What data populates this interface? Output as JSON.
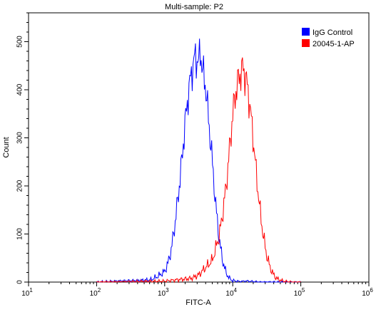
{
  "chart_data": {
    "type": "line",
    "title": "Multi-sample: P2",
    "xlabel": "FITC-A",
    "ylabel": "Count",
    "x_scale": "log",
    "xlim": [
      10,
      1000000
    ],
    "ylim": [
      0,
      560
    ],
    "x_ticks": [
      {
        "value": 10,
        "base": "10",
        "exp": "1"
      },
      {
        "value": 100,
        "base": "10",
        "exp": "2"
      },
      {
        "value": 1000,
        "base": "10",
        "exp": "3"
      },
      {
        "value": 10000,
        "base": "10",
        "exp": "4"
      },
      {
        "value": 100000,
        "base": "10",
        "exp": "5"
      },
      {
        "value": 1000000,
        "base": "10",
        "exp": "6"
      }
    ],
    "y_ticks": [
      0,
      100,
      200,
      300,
      400,
      500
    ],
    "grid": false,
    "legend_position": "top-right",
    "series": [
      {
        "name": "IgG Control",
        "color": "#0000ff",
        "x": [
          100,
          200,
          398,
          631,
          794,
          1000,
          1122,
          1259,
          1413,
          1585,
          1778,
          1995,
          2239,
          2512,
          2818,
          3162,
          3350,
          3548,
          3981,
          4467,
          5012,
          5623,
          6310,
          7079,
          7943,
          8913,
          10000,
          12589,
          15849,
          25119,
          100000
        ],
        "values": [
          0,
          2,
          3,
          5,
          12,
          22,
          40,
          70,
          120,
          180,
          250,
          330,
          395,
          440,
          470,
          455,
          485,
          445,
          410,
          330,
          250,
          160,
          90,
          45,
          20,
          8,
          3,
          1,
          2,
          0,
          0
        ]
      },
      {
        "name": "20045-1-AP",
        "color": "#ff0000",
        "x": [
          100,
          1000,
          2512,
          3162,
          3981,
          5012,
          5623,
          6310,
          7079,
          7943,
          8913,
          10000,
          11220,
          12589,
          14125,
          15849,
          17783,
          19953,
          22387,
          25119,
          28184,
          31623,
          35481,
          39811,
          44668,
          50119,
          56234,
          63096,
          79433,
          100000
        ],
        "values": [
          0,
          2,
          8,
          15,
          30,
          45,
          70,
          95,
          140,
          195,
          270,
          350,
          400,
          430,
          445,
          420,
          370,
          300,
          220,
          150,
          95,
          55,
          30,
          15,
          7,
          4,
          2,
          1,
          0,
          0
        ]
      }
    ]
  }
}
